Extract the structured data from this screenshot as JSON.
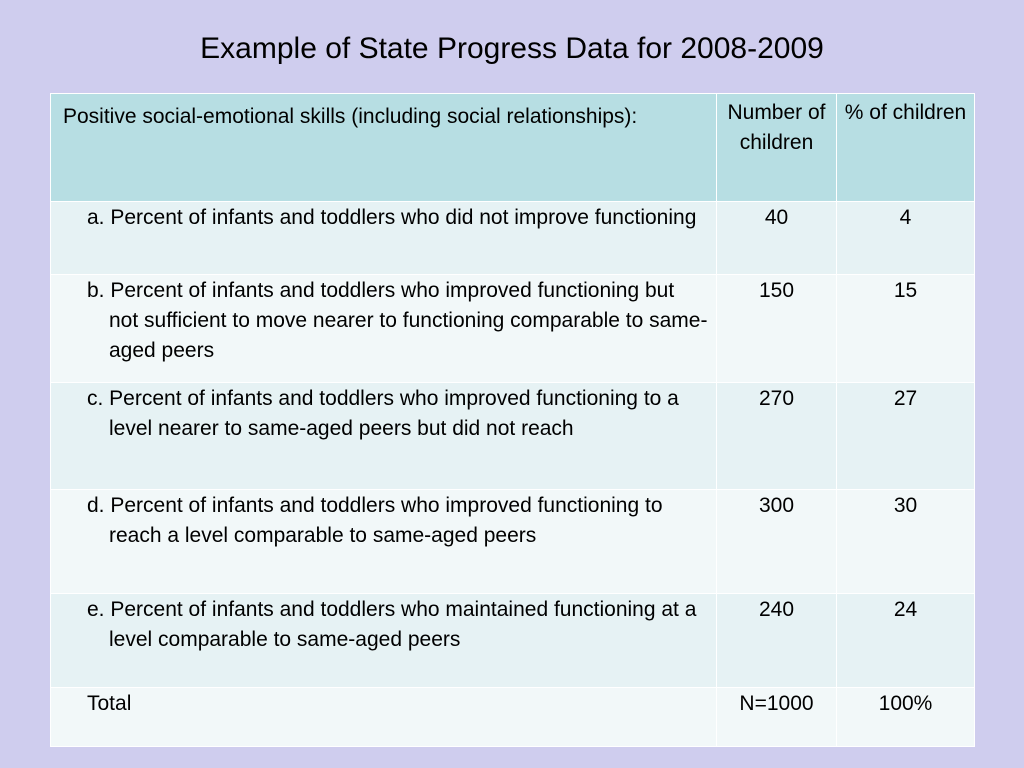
{
  "title": "Example of State Progress Data for 2008-2009",
  "table": {
    "header": {
      "label": "Positive social-emotional skills (including social relationships):",
      "col_number": "Number of children",
      "col_percent": "% of children"
    },
    "rows": [
      {
        "text": "a.  Percent of infants and toddlers who did not improve functioning",
        "number": "40",
        "percent": "4"
      },
      {
        "text": "b.  Percent of infants and toddlers who improved functioning but not sufficient to move nearer to functioning comparable to same-aged peers",
        "number": "150",
        "percent": "15"
      },
      {
        "text": "c.  Percent of infants and toddlers who improved functioning to a level nearer to same-aged peers but did not reach",
        "number": "270",
        "percent": "27"
      },
      {
        "text": "d.  Percent of infants and toddlers who improved functioning to reach a level comparable to same-aged peers",
        "number": "300",
        "percent": "30"
      },
      {
        "text": "e.  Percent of infants and toddlers who maintained functioning at a level comparable to same-aged peers",
        "number": "240",
        "percent": "24"
      }
    ],
    "total": {
      "label": "Total",
      "number": "N=1000",
      "percent": "100%"
    }
  },
  "colors": {
    "background": "#cfcdee",
    "header_background": "#b7dee3",
    "header_text": "#6f2fa0",
    "row_odd": "#e6f2f4",
    "row_even": "#f2f8f9"
  }
}
